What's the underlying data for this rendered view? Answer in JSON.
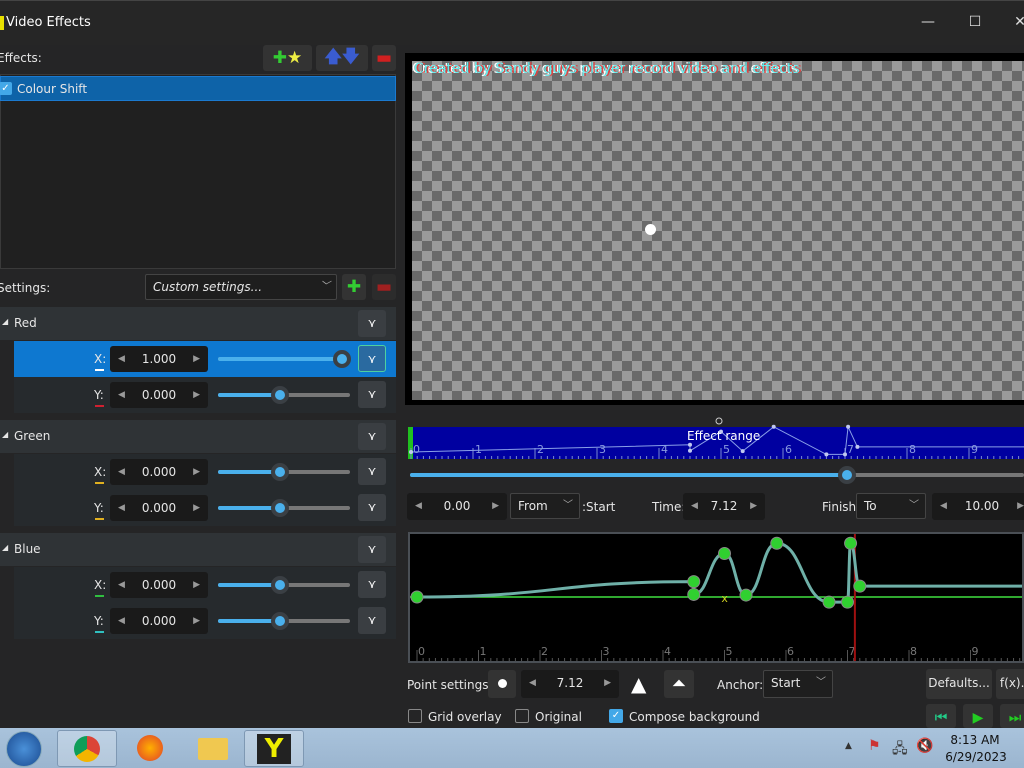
{
  "window": {
    "title": "Video Effects",
    "minimize": "—",
    "maximize": "☐",
    "close": "✕"
  },
  "effects": {
    "label": "Effects:",
    "items": [
      {
        "label": "Colour Shift",
        "checked": true
      }
    ]
  },
  "settings": {
    "label": "Settings:",
    "preset": "Custom settings...",
    "groups": [
      {
        "name": "Red",
        "rows": [
          {
            "axis": "X:",
            "value": "1.000",
            "fraction": 1.0,
            "marker": "#ffffff",
            "selected": true
          },
          {
            "axis": "Y:",
            "value": "0.000",
            "fraction": 0.5,
            "marker": "#d02030"
          }
        ]
      },
      {
        "name": "Green",
        "rows": [
          {
            "axis": "X:",
            "value": "0.000",
            "fraction": 0.5,
            "marker": "#e0b020"
          },
          {
            "axis": "Y:",
            "value": "0.000",
            "fraction": 0.5,
            "marker": "#e0b020"
          }
        ]
      },
      {
        "name": "Blue",
        "rows": [
          {
            "axis": "X:",
            "value": "0.000",
            "fraction": 0.5,
            "marker": "#30c040"
          },
          {
            "axis": "Y:",
            "value": "0.000",
            "fraction": 0.5,
            "marker": "#30c0c0"
          }
        ]
      }
    ]
  },
  "preview": {
    "overlay_text": "Created by Sandy guys player record video and effects"
  },
  "timeline": {
    "label": "Effect range",
    "ticks": [
      "0",
      "1",
      "2",
      "3",
      "4",
      "5",
      "6",
      "7",
      "8",
      "9"
    ],
    "position_fraction": 0.712
  },
  "controls": {
    "start_value": "0.00",
    "from": "From",
    "start_label": ":Start",
    "time_label": "Time:",
    "time_value": "7.12",
    "finish_label": "Finish:",
    "to": "To",
    "finish_value": "10.00"
  },
  "graph": {
    "ticks": [
      "0",
      "1",
      "2",
      "3",
      "4",
      "5",
      "6",
      "7",
      "8",
      "9"
    ],
    "current_time": 7.12,
    "keyframes": [
      [
        0,
        0
      ],
      [
        4.5,
        0.24
      ],
      [
        4.5,
        0.04
      ],
      [
        5.0,
        0.68
      ],
      [
        5.35,
        0.03
      ],
      [
        5.85,
        0.84
      ],
      [
        6.7,
        -0.08
      ],
      [
        7.0,
        -0.08
      ],
      [
        7.05,
        0.84
      ],
      [
        7.2,
        0.17
      ],
      [
        10,
        0.17
      ]
    ],
    "curve_color": "#6fb0a8",
    "baseline_color": "#40e040"
  },
  "point_settings": {
    "label": "Point settings:",
    "value": "7.12",
    "anchor_label": "Anchor:",
    "anchor": "Start",
    "defaults": "Defaults...",
    "fx": "f(x)..."
  },
  "options": {
    "grid_overlay": {
      "label": "Grid overlay",
      "checked": false
    },
    "original": {
      "label": "Original",
      "checked": false
    },
    "compose": {
      "label": "Compose background",
      "checked": true
    }
  },
  "taskbar": {
    "time": "8:13 AM",
    "date": "6/29/2023"
  }
}
